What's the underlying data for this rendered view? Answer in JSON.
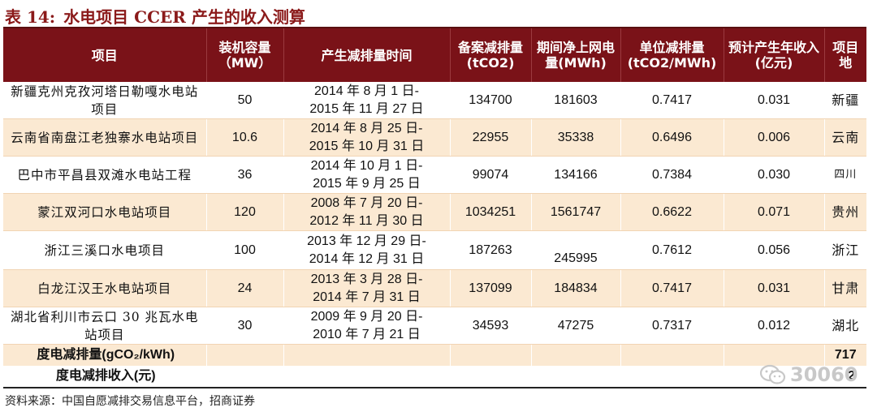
{
  "title": {
    "prefix": "表 14:",
    "text": "水电项目 CCER 产生的收入测算"
  },
  "table": {
    "headers": {
      "name": "项目",
      "capacity": "装机容量（MW）",
      "period": "产生减排量时间",
      "filed": "备案减排量(tCO2)",
      "net_power": "期间净上网电量(MWh)",
      "unit_reduction": "单位减排量(tCO2/MWh)",
      "income": "预计产生年收入(亿元)",
      "place": "项目地"
    },
    "rows": [
      {
        "name": "新疆克州克孜河塔日勒嘎水电站项目",
        "capacity": "50",
        "period_start": "2014 年 8 月 1 日-",
        "period_end": "2015 年 11 月 27 日",
        "filed": "134700",
        "net_power": "181603",
        "unit_reduction": "0.7417",
        "income": "0.031",
        "place": "新疆"
      },
      {
        "name": "云南省南盘江老独寨水电站项目",
        "capacity": "10.6",
        "period_start": "2014 年 8 月 25 日-",
        "period_end": "2015 年 10 月 31 日",
        "filed": "22955",
        "net_power": "35338",
        "unit_reduction": "0.6496",
        "income": "0.006",
        "place": "云南"
      },
      {
        "name": "巴中市平昌县双滩水电站工程",
        "capacity": "36",
        "period_start": "2014 年 10 月 1 日-",
        "period_end": "2015 年 9 月 25 日",
        "filed": "99074",
        "net_power": "134166",
        "unit_reduction": "0.7384",
        "income": "0.030",
        "place": "四川"
      },
      {
        "name": "蒙江双河口水电站项目",
        "capacity": "120",
        "period_start": "2008 年 7 月 20 日-",
        "period_end": "2012 年 11 月 30 日",
        "filed": "1034251",
        "net_power": "1561747",
        "unit_reduction": "0.6622",
        "income": "0.071",
        "place": "贵州"
      },
      {
        "name": "浙江三溪口水电项目",
        "capacity": "100",
        "period_start": "2013 年 12 月 29 日-",
        "period_end": "2014 年 12 月 31 日",
        "filed": "187263",
        "net_power": "245995",
        "unit_reduction": "0.7612",
        "income": "0.056",
        "place": "浙江"
      },
      {
        "name": "白龙江汉王水电站项目",
        "capacity": "24",
        "period_start": "2013 年 3 月 28 日-",
        "period_end": "2014 年 7 月 31 日",
        "filed": "137099",
        "net_power": "184834",
        "unit_reduction": "0.7417",
        "income": "0.031",
        "place": "甘肃"
      },
      {
        "name": "湖北省利川市云口 30 兆瓦水电站项目",
        "capacity": "30",
        "period_start": "2009 年 9 月 20 日-",
        "period_end": "2010 年 7 月 21 日",
        "filed": "34593",
        "net_power": "47275",
        "unit_reduction": "0.7317",
        "income": "0.012",
        "place": "湖北"
      }
    ],
    "summary": [
      {
        "label": "度电减排量(gCO₂/kWh)",
        "value": "717"
      },
      {
        "label": "度电减排收入(元)",
        "value": "2"
      }
    ]
  },
  "source": "资料来源：中国自愿减排交易信息平台，招商证券",
  "watermark": "30060",
  "colors": {
    "header_bg": "#7a1218",
    "stripe_bg": "#fbe9d2",
    "title_color": "#8b1a1a"
  },
  "icons": {
    "watermark": "wechat-icon"
  }
}
